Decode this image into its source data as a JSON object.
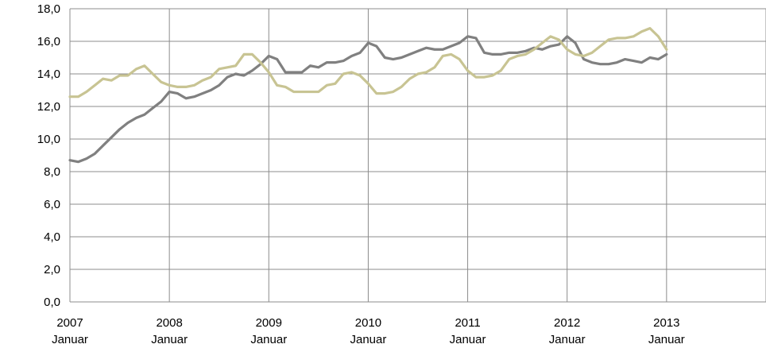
{
  "chart_data": {
    "type": "line",
    "title": "",
    "xlabel": "",
    "ylabel": "",
    "ylim": [
      0,
      18
    ],
    "yticks": [
      "0,0",
      "2,0",
      "4,0",
      "6,0",
      "8,0",
      "10,0",
      "12,0",
      "14,0",
      "16,0",
      "18,0"
    ],
    "xlim": [
      2007,
      2014
    ],
    "xtick_years": [
      "2007",
      "2008",
      "2009",
      "2010",
      "2011",
      "2012",
      "2013"
    ],
    "xtick_month": "Januar",
    "grid": true,
    "legend": "none",
    "series": [
      {
        "color": "#808080",
        "points": [
          [
            2007.0,
            8.7
          ],
          [
            2007.083,
            8.6
          ],
          [
            2007.167,
            8.8
          ],
          [
            2007.25,
            9.1
          ],
          [
            2007.333,
            9.6
          ],
          [
            2007.417,
            10.1
          ],
          [
            2007.5,
            10.6
          ],
          [
            2007.583,
            11.0
          ],
          [
            2007.667,
            11.3
          ],
          [
            2007.75,
            11.5
          ],
          [
            2007.833,
            11.9
          ],
          [
            2007.917,
            12.3
          ],
          [
            2008.0,
            12.9
          ],
          [
            2008.083,
            12.8
          ],
          [
            2008.167,
            12.5
          ],
          [
            2008.25,
            12.6
          ],
          [
            2008.333,
            12.8
          ],
          [
            2008.417,
            13.0
          ],
          [
            2008.5,
            13.3
          ],
          [
            2008.583,
            13.8
          ],
          [
            2008.667,
            14.0
          ],
          [
            2008.75,
            13.9
          ],
          [
            2008.833,
            14.2
          ],
          [
            2008.917,
            14.6
          ],
          [
            2009.0,
            15.1
          ],
          [
            2009.083,
            14.9
          ],
          [
            2009.167,
            14.1
          ],
          [
            2009.25,
            14.1
          ],
          [
            2009.333,
            14.1
          ],
          [
            2009.417,
            14.5
          ],
          [
            2009.5,
            14.4
          ],
          [
            2009.583,
            14.7
          ],
          [
            2009.667,
            14.7
          ],
          [
            2009.75,
            14.8
          ],
          [
            2009.833,
            15.1
          ],
          [
            2009.917,
            15.3
          ],
          [
            2010.0,
            15.9
          ],
          [
            2010.083,
            15.7
          ],
          [
            2010.167,
            15.0
          ],
          [
            2010.25,
            14.9
          ],
          [
            2010.333,
            15.0
          ],
          [
            2010.417,
            15.2
          ],
          [
            2010.5,
            15.4
          ],
          [
            2010.583,
            15.6
          ],
          [
            2010.667,
            15.5
          ],
          [
            2010.75,
            15.5
          ],
          [
            2010.833,
            15.7
          ],
          [
            2010.917,
            15.9
          ],
          [
            2011.0,
            16.3
          ],
          [
            2011.083,
            16.2
          ],
          [
            2011.167,
            15.3
          ],
          [
            2011.25,
            15.2
          ],
          [
            2011.333,
            15.2
          ],
          [
            2011.417,
            15.3
          ],
          [
            2011.5,
            15.3
          ],
          [
            2011.583,
            15.4
          ],
          [
            2011.667,
            15.6
          ],
          [
            2011.75,
            15.5
          ],
          [
            2011.833,
            15.7
          ],
          [
            2011.917,
            15.8
          ],
          [
            2012.0,
            16.3
          ],
          [
            2012.083,
            15.9
          ],
          [
            2012.167,
            14.9
          ],
          [
            2012.25,
            14.7
          ],
          [
            2012.333,
            14.6
          ],
          [
            2012.417,
            14.6
          ],
          [
            2012.5,
            14.7
          ],
          [
            2012.583,
            14.9
          ],
          [
            2012.667,
            14.8
          ],
          [
            2012.75,
            14.7
          ],
          [
            2012.833,
            15.0
          ],
          [
            2012.917,
            14.9
          ],
          [
            2013.0,
            15.2
          ]
        ]
      },
      {
        "color": "#c8c493",
        "points": [
          [
            2007.0,
            12.6
          ],
          [
            2007.083,
            12.6
          ],
          [
            2007.167,
            12.9
          ],
          [
            2007.25,
            13.3
          ],
          [
            2007.333,
            13.7
          ],
          [
            2007.417,
            13.6
          ],
          [
            2007.5,
            13.9
          ],
          [
            2007.583,
            13.9
          ],
          [
            2007.667,
            14.3
          ],
          [
            2007.75,
            14.5
          ],
          [
            2007.833,
            14.0
          ],
          [
            2007.917,
            13.5
          ],
          [
            2008.0,
            13.3
          ],
          [
            2008.083,
            13.2
          ],
          [
            2008.167,
            13.2
          ],
          [
            2008.25,
            13.3
          ],
          [
            2008.333,
            13.6
          ],
          [
            2008.417,
            13.8
          ],
          [
            2008.5,
            14.3
          ],
          [
            2008.583,
            14.4
          ],
          [
            2008.667,
            14.5
          ],
          [
            2008.75,
            15.2
          ],
          [
            2008.833,
            15.2
          ],
          [
            2008.917,
            14.7
          ],
          [
            2009.0,
            14.1
          ],
          [
            2009.083,
            13.3
          ],
          [
            2009.167,
            13.2
          ],
          [
            2009.25,
            12.9
          ],
          [
            2009.333,
            12.9
          ],
          [
            2009.417,
            12.9
          ],
          [
            2009.5,
            12.9
          ],
          [
            2009.583,
            13.3
          ],
          [
            2009.667,
            13.4
          ],
          [
            2009.75,
            14.0
          ],
          [
            2009.833,
            14.1
          ],
          [
            2009.917,
            13.9
          ],
          [
            2010.0,
            13.4
          ],
          [
            2010.083,
            12.8
          ],
          [
            2010.167,
            12.8
          ],
          [
            2010.25,
            12.9
          ],
          [
            2010.333,
            13.2
          ],
          [
            2010.417,
            13.7
          ],
          [
            2010.5,
            14.0
          ],
          [
            2010.583,
            14.1
          ],
          [
            2010.667,
            14.4
          ],
          [
            2010.75,
            15.1
          ],
          [
            2010.833,
            15.2
          ],
          [
            2010.917,
            14.9
          ],
          [
            2011.0,
            14.2
          ],
          [
            2011.083,
            13.8
          ],
          [
            2011.167,
            13.8
          ],
          [
            2011.25,
            13.9
          ],
          [
            2011.333,
            14.2
          ],
          [
            2011.417,
            14.9
          ],
          [
            2011.5,
            15.1
          ],
          [
            2011.583,
            15.2
          ],
          [
            2011.667,
            15.5
          ],
          [
            2011.75,
            15.9
          ],
          [
            2011.833,
            16.3
          ],
          [
            2011.917,
            16.1
          ],
          [
            2012.0,
            15.5
          ],
          [
            2012.083,
            15.2
          ],
          [
            2012.167,
            15.1
          ],
          [
            2012.25,
            15.3
          ],
          [
            2012.333,
            15.7
          ],
          [
            2012.417,
            16.1
          ],
          [
            2012.5,
            16.2
          ],
          [
            2012.583,
            16.2
          ],
          [
            2012.667,
            16.3
          ],
          [
            2012.75,
            16.6
          ],
          [
            2012.833,
            16.8
          ],
          [
            2012.917,
            16.3
          ],
          [
            2013.0,
            15.5
          ]
        ]
      }
    ]
  }
}
